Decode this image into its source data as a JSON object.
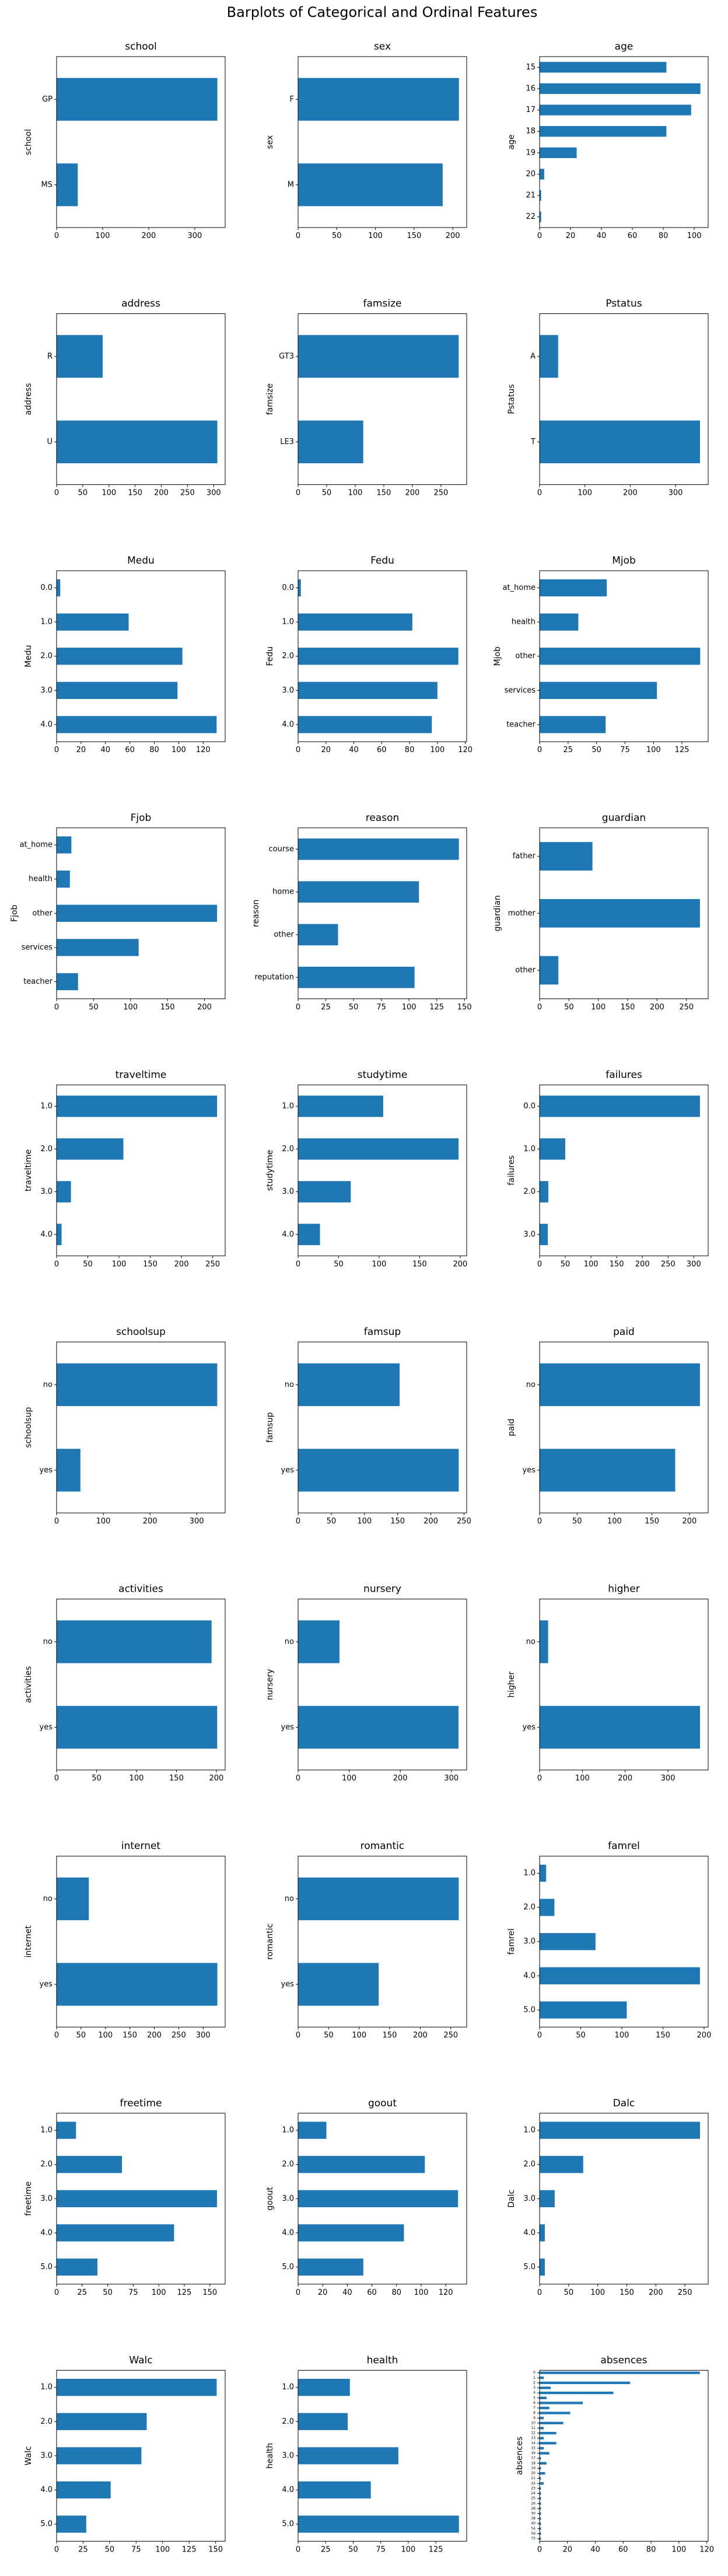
{
  "figure": {
    "suptitle": "Barplots of Categorical and Ordinal Features",
    "bar_color": "#1f77b4"
  },
  "chart_data": [
    {
      "type": "bar",
      "orientation": "horizontal",
      "title": "school",
      "ylabel": "school",
      "xlabel": "",
      "categories": [
        "GP",
        "MS"
      ],
      "values": [
        349,
        46
      ],
      "xlim": [
        0,
        366
      ],
      "xticks": [
        0,
        100,
        200,
        300
      ]
    },
    {
      "type": "bar",
      "orientation": "horizontal",
      "title": "sex",
      "ylabel": "sex",
      "xlabel": "",
      "categories": [
        "F",
        "M"
      ],
      "values": [
        208,
        187
      ],
      "xlim": [
        0,
        218
      ],
      "xticks": [
        0,
        50,
        100,
        150,
        200
      ]
    },
    {
      "type": "bar",
      "orientation": "horizontal",
      "title": "age",
      "ylabel": "age",
      "xlabel": "",
      "categories": [
        "15",
        "16",
        "17",
        "18",
        "19",
        "20",
        "21",
        "22"
      ],
      "values": [
        82,
        104,
        98,
        82,
        24,
        3,
        1,
        1
      ],
      "xlim": [
        0,
        109
      ],
      "xticks": [
        0,
        20,
        40,
        60,
        80,
        100
      ]
    },
    {
      "type": "bar",
      "orientation": "horizontal",
      "title": "address",
      "ylabel": "address",
      "xlabel": "",
      "categories": [
        "R",
        "U"
      ],
      "values": [
        88,
        307
      ],
      "xlim": [
        0,
        322
      ],
      "xticks": [
        0,
        50,
        100,
        150,
        200,
        250,
        300
      ]
    },
    {
      "type": "bar",
      "orientation": "horizontal",
      "title": "famsize",
      "ylabel": "famsize",
      "xlabel": "",
      "categories": [
        "GT3",
        "LE3"
      ],
      "values": [
        281,
        114
      ],
      "xlim": [
        0,
        295
      ],
      "xticks": [
        0,
        50,
        100,
        150,
        200,
        250
      ]
    },
    {
      "type": "bar",
      "orientation": "horizontal",
      "title": "Pstatus",
      "ylabel": "Pstatus",
      "xlabel": "",
      "categories": [
        "A",
        "T"
      ],
      "values": [
        41,
        354
      ],
      "xlim": [
        0,
        372
      ],
      "xticks": [
        0,
        100,
        200,
        300
      ]
    },
    {
      "type": "bar",
      "orientation": "horizontal",
      "title": "Medu",
      "ylabel": "Medu",
      "xlabel": "",
      "categories": [
        "0.0",
        "1.0",
        "2.0",
        "3.0",
        "4.0"
      ],
      "values": [
        3,
        59,
        103,
        99,
        131
      ],
      "xlim": [
        0,
        138
      ],
      "xticks": [
        0,
        20,
        40,
        60,
        80,
        100,
        120
      ]
    },
    {
      "type": "bar",
      "orientation": "horizontal",
      "title": "Fedu",
      "ylabel": "Fedu",
      "xlabel": "",
      "categories": [
        "0.0",
        "1.0",
        "2.0",
        "3.0",
        "4.0"
      ],
      "values": [
        2,
        82,
        115,
        100,
        96
      ],
      "xlim": [
        0,
        121
      ],
      "xticks": [
        0,
        20,
        40,
        60,
        80,
        100,
        120
      ]
    },
    {
      "type": "bar",
      "orientation": "horizontal",
      "title": "Mjob",
      "ylabel": "Mjob",
      "xlabel": "",
      "categories": [
        "at_home",
        "health",
        "other",
        "services",
        "teacher"
      ],
      "values": [
        59,
        34,
        141,
        103,
        58
      ],
      "xlim": [
        0,
        148
      ],
      "xticks": [
        0,
        25,
        50,
        75,
        100,
        125
      ]
    },
    {
      "type": "bar",
      "orientation": "horizontal",
      "title": "Fjob",
      "ylabel": "Fjob",
      "xlabel": "",
      "categories": [
        "at_home",
        "health",
        "other",
        "services",
        "teacher"
      ],
      "values": [
        20,
        18,
        217,
        111,
        29
      ],
      "xlim": [
        0,
        228
      ],
      "xticks": [
        0,
        50,
        100,
        150,
        200
      ]
    },
    {
      "type": "bar",
      "orientation": "horizontal",
      "title": "reason",
      "ylabel": "reason",
      "xlabel": "",
      "categories": [
        "course",
        "home",
        "other",
        "reputation"
      ],
      "values": [
        145,
        109,
        36,
        105
      ],
      "xlim": [
        0,
        152
      ],
      "xticks": [
        0,
        25,
        50,
        75,
        100,
        125,
        150
      ]
    },
    {
      "type": "bar",
      "orientation": "horizontal",
      "title": "guardian",
      "ylabel": "guardian",
      "xlabel": "",
      "categories": [
        "father",
        "mother",
        "other"
      ],
      "values": [
        90,
        273,
        32
      ],
      "xlim": [
        0,
        287
      ],
      "xticks": [
        0,
        50,
        100,
        150,
        200,
        250
      ]
    },
    {
      "type": "bar",
      "orientation": "horizontal",
      "title": "traveltime",
      "ylabel": "traveltime",
      "xlabel": "",
      "categories": [
        "1.0",
        "2.0",
        "3.0",
        "4.0"
      ],
      "values": [
        257,
        107,
        23,
        8
      ],
      "xlim": [
        0,
        270
      ],
      "xticks": [
        0,
        50,
        100,
        150,
        200,
        250
      ]
    },
    {
      "type": "bar",
      "orientation": "horizontal",
      "title": "studytime",
      "ylabel": "studytime",
      "xlabel": "",
      "categories": [
        "1.0",
        "2.0",
        "3.0",
        "4.0"
      ],
      "values": [
        105,
        198,
        65,
        27
      ],
      "xlim": [
        0,
        208
      ],
      "xticks": [
        0,
        50,
        100,
        150,
        200
      ]
    },
    {
      "type": "bar",
      "orientation": "horizontal",
      "title": "failures",
      "ylabel": "failures",
      "xlabel": "",
      "categories": [
        "0.0",
        "1.0",
        "2.0",
        "3.0"
      ],
      "values": [
        312,
        50,
        17,
        16
      ],
      "xlim": [
        0,
        328
      ],
      "xticks": [
        0,
        50,
        100,
        150,
        200,
        250,
        300
      ]
    },
    {
      "type": "bar",
      "orientation": "horizontal",
      "title": "schoolsup",
      "ylabel": "schoolsup",
      "xlabel": "",
      "categories": [
        "no",
        "yes"
      ],
      "values": [
        344,
        51
      ],
      "xlim": [
        0,
        361
      ],
      "xticks": [
        0,
        100,
        200,
        300
      ]
    },
    {
      "type": "bar",
      "orientation": "horizontal",
      "title": "famsup",
      "ylabel": "famsup",
      "xlabel": "",
      "categories": [
        "no",
        "yes"
      ],
      "values": [
        153,
        242
      ],
      "xlim": [
        0,
        254
      ],
      "xticks": [
        0,
        50,
        100,
        150,
        200,
        250
      ]
    },
    {
      "type": "bar",
      "orientation": "horizontal",
      "title": "paid",
      "ylabel": "paid",
      "xlabel": "",
      "categories": [
        "no",
        "yes"
      ],
      "values": [
        214,
        181
      ],
      "xlim": [
        0,
        225
      ],
      "xticks": [
        0,
        50,
        100,
        150,
        200
      ]
    },
    {
      "type": "bar",
      "orientation": "horizontal",
      "title": "activities",
      "ylabel": "activities",
      "xlabel": "",
      "categories": [
        "no",
        "yes"
      ],
      "values": [
        194,
        201
      ],
      "xlim": [
        0,
        211
      ],
      "xticks": [
        0,
        50,
        100,
        150,
        200
      ]
    },
    {
      "type": "bar",
      "orientation": "horizontal",
      "title": "nursery",
      "ylabel": "nursery",
      "xlabel": "",
      "categories": [
        "no",
        "yes"
      ],
      "values": [
        81,
        314
      ],
      "xlim": [
        0,
        330
      ],
      "xticks": [
        0,
        100,
        200,
        300
      ]
    },
    {
      "type": "bar",
      "orientation": "horizontal",
      "title": "higher",
      "ylabel": "higher",
      "xlabel": "",
      "categories": [
        "no",
        "yes"
      ],
      "values": [
        20,
        375
      ],
      "xlim": [
        0,
        394
      ],
      "xticks": [
        0,
        100,
        200,
        300
      ]
    },
    {
      "type": "bar",
      "orientation": "horizontal",
      "title": "internet",
      "ylabel": "internet",
      "xlabel": "",
      "categories": [
        "no",
        "yes"
      ],
      "values": [
        66,
        329
      ],
      "xlim": [
        0,
        345
      ],
      "xticks": [
        0,
        50,
        100,
        150,
        200,
        250,
        300
      ]
    },
    {
      "type": "bar",
      "orientation": "horizontal",
      "title": "romantic",
      "ylabel": "romantic",
      "xlabel": "",
      "categories": [
        "no",
        "yes"
      ],
      "values": [
        263,
        132
      ],
      "xlim": [
        0,
        276
      ],
      "xticks": [
        0,
        50,
        100,
        150,
        200,
        250
      ]
    },
    {
      "type": "bar",
      "orientation": "horizontal",
      "title": "famrel",
      "ylabel": "famrel",
      "xlabel": "",
      "categories": [
        "1.0",
        "2.0",
        "3.0",
        "4.0",
        "5.0"
      ],
      "values": [
        8,
        18,
        68,
        195,
        106
      ],
      "xlim": [
        0,
        205
      ],
      "xticks": [
        0,
        50,
        100,
        150,
        200
      ]
    },
    {
      "type": "bar",
      "orientation": "horizontal",
      "title": "freetime",
      "ylabel": "freetime",
      "xlabel": "",
      "categories": [
        "1.0",
        "2.0",
        "3.0",
        "4.0",
        "5.0"
      ],
      "values": [
        19,
        64,
        157,
        115,
        40
      ],
      "xlim": [
        0,
        165
      ],
      "xticks": [
        0,
        25,
        50,
        75,
        100,
        125,
        150
      ]
    },
    {
      "type": "bar",
      "orientation": "horizontal",
      "title": "goout",
      "ylabel": "goout",
      "xlabel": "",
      "categories": [
        "1.0",
        "2.0",
        "3.0",
        "4.0",
        "5.0"
      ],
      "values": [
        23,
        103,
        130,
        86,
        53
      ],
      "xlim": [
        0,
        137
      ],
      "xticks": [
        0,
        20,
        40,
        60,
        80,
        100,
        120
      ]
    },
    {
      "type": "bar",
      "orientation": "horizontal",
      "title": "Dalc",
      "ylabel": "Dalc",
      "xlabel": "",
      "categories": [
        "1.0",
        "2.0",
        "3.0",
        "4.0",
        "5.0"
      ],
      "values": [
        276,
        75,
        26,
        9,
        9
      ],
      "xlim": [
        0,
        290
      ],
      "xticks": [
        0,
        50,
        100,
        150,
        200,
        250
      ]
    },
    {
      "type": "bar",
      "orientation": "horizontal",
      "title": "Walc",
      "ylabel": "Walc",
      "xlabel": "",
      "categories": [
        "1.0",
        "2.0",
        "3.0",
        "4.0",
        "5.0"
      ],
      "values": [
        151,
        85,
        80,
        51,
        28
      ],
      "xlim": [
        0,
        159
      ],
      "xticks": [
        0,
        25,
        50,
        75,
        100,
        125,
        150
      ]
    },
    {
      "type": "bar",
      "orientation": "horizontal",
      "title": "health",
      "ylabel": "health",
      "xlabel": "",
      "categories": [
        "1.0",
        "2.0",
        "3.0",
        "4.0",
        "5.0"
      ],
      "values": [
        47,
        45,
        91,
        66,
        146
      ],
      "xlim": [
        0,
        153
      ],
      "xticks": [
        0,
        25,
        50,
        75,
        100,
        125
      ]
    },
    {
      "type": "bar",
      "orientation": "horizontal",
      "title": "absences",
      "ylabel": "absences",
      "xlabel": "",
      "categories": [
        "0",
        "1",
        "2",
        "3",
        "4",
        "5",
        "6",
        "7",
        "8",
        "9",
        "10",
        "11",
        "12",
        "13",
        "14",
        "15",
        "16",
        "17",
        "18",
        "19",
        "20",
        "21",
        "22",
        "23",
        "24",
        "25",
        "26",
        "28",
        "30",
        "38",
        "40",
        "54",
        "56",
        "75"
      ],
      "values": [
        115,
        3,
        65,
        8,
        53,
        5,
        31,
        7,
        22,
        3,
        17,
        3,
        12,
        3,
        12,
        3,
        7,
        1,
        5,
        1,
        4,
        1,
        3,
        1,
        1,
        1,
        1,
        1,
        1,
        1,
        1,
        1,
        1,
        1
      ],
      "xlim": [
        0,
        121
      ],
      "xticks": [
        0,
        20,
        40,
        60,
        80,
        100,
        120
      ]
    }
  ]
}
